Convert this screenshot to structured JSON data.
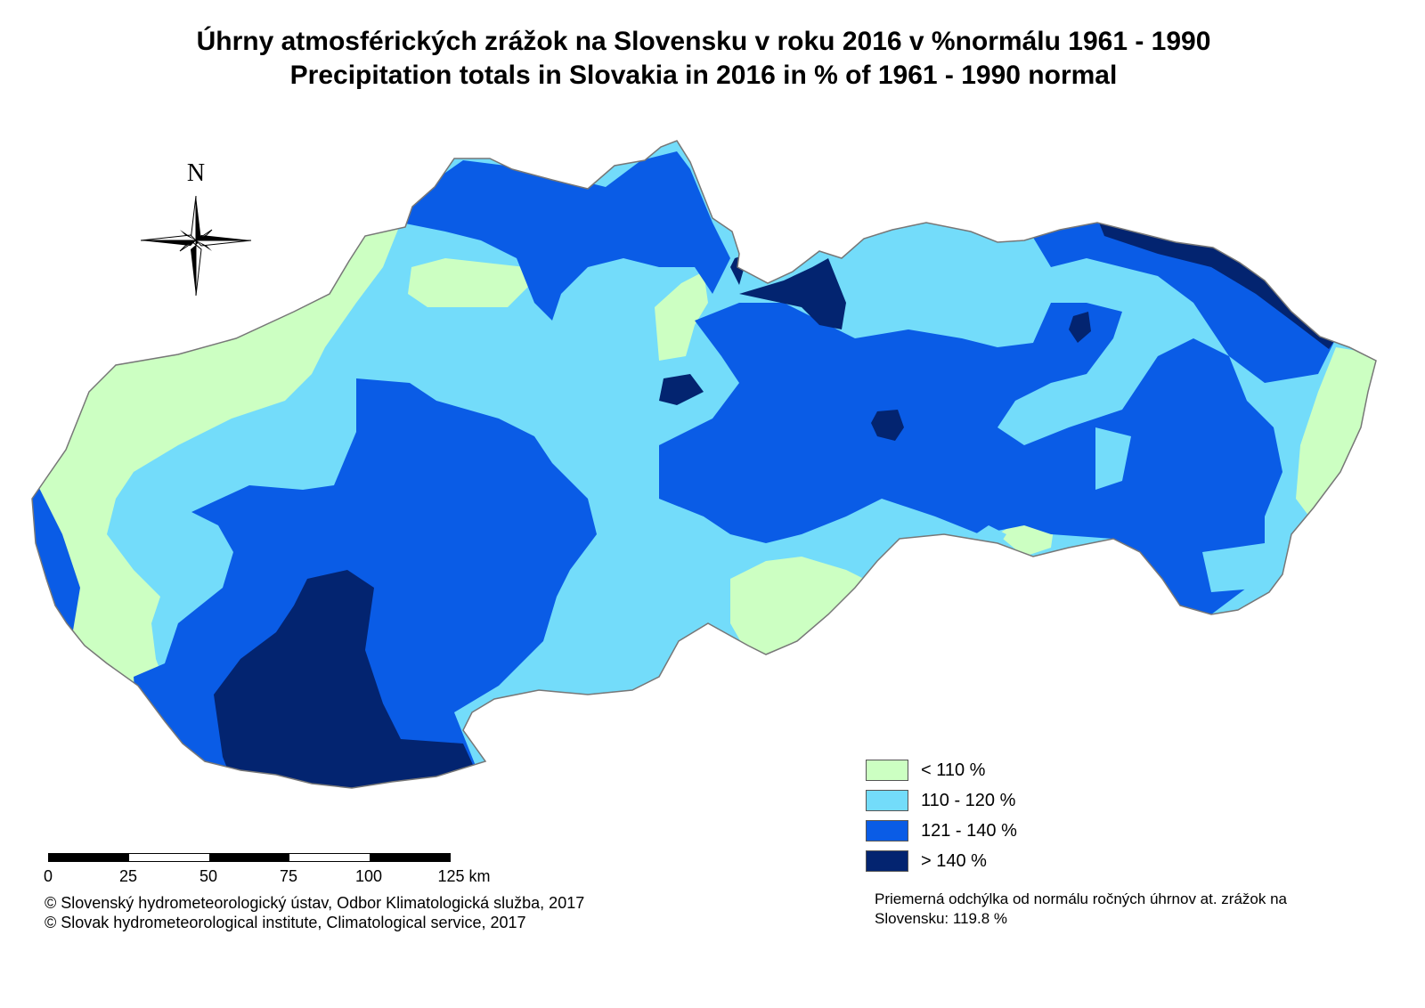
{
  "title_sk": "Úhrny atmosférických zrážok na Slovensku v roku 2016 v %normálu 1961 - 1990",
  "title_en": "Precipitation totals in Slovakia in 2016 in % of 1961 - 1990 normal",
  "north_label": "N",
  "legend": [
    {
      "label": "< 110 %",
      "color": "#ccffc2"
    },
    {
      "label": "110 - 120 %",
      "color": "#73dcfa"
    },
    {
      "label": "121 - 140 %",
      "color": "#0a5ce6"
    },
    {
      "label": "> 140 %",
      "color": "#032470"
    }
  ],
  "colors": {
    "outline": "#777777",
    "background": "#ffffff"
  },
  "scale": {
    "ticks": [
      "0",
      "25",
      "50",
      "75",
      "100",
      "125 km"
    ],
    "unit": "km"
  },
  "credits": [
    "© Slovenský hydrometeorologický ústav, Odbor Klimatologická služba, 2017",
    "© Slovak hydrometeorological institute, Climatological service, 2017"
  ],
  "note": "Priemerná odchýlka od normálu ročných úhrnov at. zrážok na Slovensku: 119.8 %"
}
